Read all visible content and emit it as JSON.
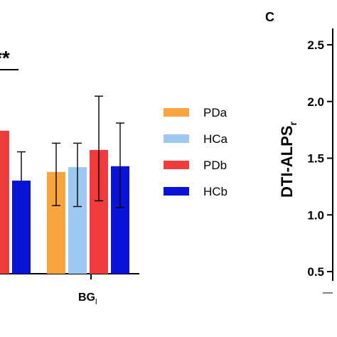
{
  "chart_data": [
    {
      "type": "bar",
      "categories": [
        "",
        "BG_l"
      ],
      "category_labels": [
        {
          "main": "",
          "sub": ""
        },
        {
          "main": "BG",
          "sub": "l"
        }
      ],
      "series": [
        {
          "name": "PDa",
          "color": "#F7A43F",
          "values": [
            null,
            1.06
          ],
          "err_low": [
            null,
            0.71
          ],
          "err_high": [
            null,
            1.36
          ]
        },
        {
          "name": "HCa",
          "color": "#9DC8F2",
          "values": [
            null,
            1.11
          ],
          "err_low": [
            null,
            0.7
          ],
          "err_high": [
            null,
            1.36
          ]
        },
        {
          "name": "PDb",
          "color": "#EE3B3B",
          "values": [
            1.49,
            1.29
          ],
          "err_low": [
            null,
            0.76
          ],
          "err_high": [
            null,
            1.85
          ]
        },
        {
          "name": "HCb",
          "color": "#0A14D6",
          "values": [
            0.97,
            1.12
          ],
          "err_low": [
            null,
            0.69
          ],
          "err_high": [
            1.27,
            1.57
          ]
        }
      ],
      "significance": "**",
      "legend_position": "right",
      "ylim": [
        0,
        2.2
      ]
    },
    {
      "panel_label": "C",
      "type": "scatter",
      "ylabel": {
        "main": "DTI-ALPS",
        "sub": "r"
      },
      "y_ticks": [
        "0.5",
        "1.0",
        "1.5",
        "2.0",
        "2.5"
      ],
      "ylim": [
        0.5,
        2.5
      ]
    }
  ]
}
